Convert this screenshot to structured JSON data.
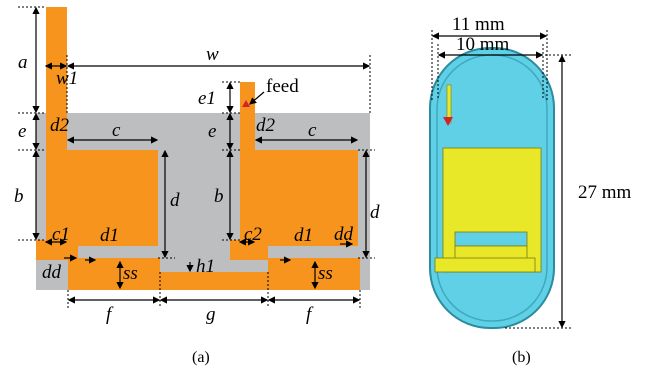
{
  "colors": {
    "copper": "#F7941D",
    "substrate": "#BCBEC0",
    "capsule_fill": "#5FD0E6",
    "capsule_edge": "#2A8C9E",
    "antenna_yellow": "#E8E829",
    "feed_marker": "#D2232A"
  },
  "panel_a": {
    "caption": "(a)",
    "feed_label": "feed",
    "labels": {
      "a": "a",
      "w1": "w1",
      "w": "w",
      "e_left": "e",
      "d2_left": "d2",
      "c_left": "c",
      "b_left": "b",
      "d_center": "d",
      "c1": "c1",
      "d1_left": "d1",
      "dd_left": "dd",
      "ss_left": "ss",
      "h1": "h1",
      "e1": "e1",
      "e_right": "e",
      "d2_right": "d2",
      "c_right": "c",
      "b_right": "b",
      "d_right": "d",
      "c2": "c2",
      "d1_right": "d1",
      "dd_right": "dd",
      "ss_right": "ss",
      "f_left": "f",
      "g": "g",
      "f_right": "f"
    }
  },
  "panel_b": {
    "caption": "(b)",
    "width_outer": "11 mm",
    "width_inner": "10 mm",
    "height": "27 mm"
  }
}
